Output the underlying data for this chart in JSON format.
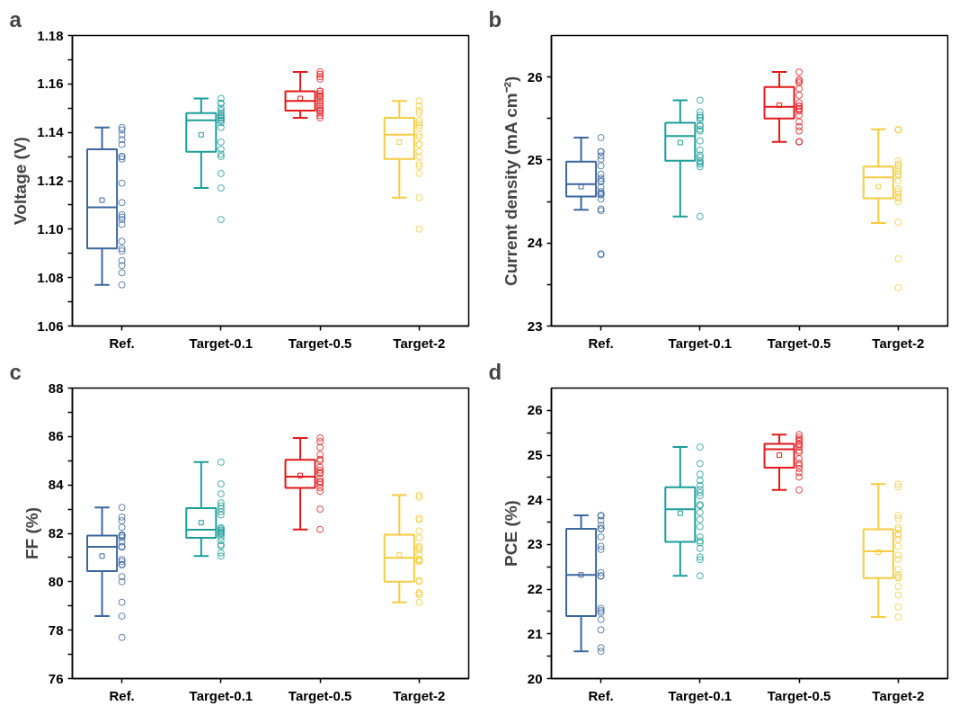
{
  "chart_data": [
    {
      "type": "box",
      "title": "a",
      "ylabel": "Voltage (V)",
      "categories": [
        "Ref.",
        "Target-0.1",
        "Target-0.5",
        "Target-2"
      ],
      "ylim": [
        1.06,
        1.18
      ],
      "yticks": [
        1.06,
        {
          "value": 1.07,
          "label": null
        },
        1.08,
        {
          "value": 1.09,
          "label": null
        },
        {
          "value": 1.1,
          "label": "1.10"
        },
        {
          "value": 1.11,
          "label": null
        },
        1.12,
        {
          "value": 1.13,
          "label": null
        },
        1.14,
        {
          "value": 1.15,
          "label": null
        },
        1.16,
        {
          "value": 1.17,
          "label": null
        },
        1.18
      ],
      "grid": false,
      "series": [
        {
          "type": "box",
          "colors": [
            "#3b679e",
            "#1b9e9a",
            "#e3191b",
            "#f5cc3f"
          ],
          "boxes": [
            {
              "low": 1.077,
              "q1": 1.092,
              "median": 1.109,
              "q3": 1.133,
              "high": 1.142,
              "mean": 1.112
            },
            {
              "low": 1.117,
              "q1": 1.132,
              "median": 1.145,
              "q3": 1.148,
              "high": 1.154,
              "mean": 1.139
            },
            {
              "low": 1.146,
              "q1": 1.149,
              "median": 1.153,
              "q3": 1.157,
              "high": 1.165,
              "mean": 1.154
            },
            {
              "low": 1.113,
              "q1": 1.129,
              "median": 1.139,
              "q3": 1.146,
              "high": 1.153,
              "mean": 1.136
            }
          ]
        },
        {
          "type": "scatter",
          "marker": "circle",
          "color": "#3b679e",
          "x": [
            "Ref.",
            "Ref.",
            "Ref.",
            "Ref.",
            "Ref.",
            "Ref.",
            "Ref.",
            "Ref.",
            "Ref.",
            "Ref.",
            "Ref.",
            "Ref.",
            "Ref.",
            "Ref.",
            "Ref.",
            "Ref.",
            "Ref.",
            "Ref.",
            "Ref.",
            "Ref.",
            "Ref."
          ],
          "values": [
            1.142,
            1.139,
            1.141,
            1.137,
            1.135,
            1.13,
            1.129,
            1.13,
            1.119,
            1.111,
            1.105,
            1.104,
            1.102,
            1.106,
            1.095,
            1.091,
            1.092,
            1.087,
            1.082,
            1.085,
            1.077
          ]
        },
        {
          "type": "scatter",
          "marker": "circle",
          "color": "#1b9e9a",
          "x": [
            "Target-0.1",
            "Target-0.1",
            "Target-0.1",
            "Target-0.1",
            "Target-0.1",
            "Target-0.1",
            "Target-0.1",
            "Target-0.1",
            "Target-0.1",
            "Target-0.1",
            "Target-0.1",
            "Target-0.1",
            "Target-0.1",
            "Target-0.1",
            "Target-0.1",
            "Target-0.1",
            "Target-0.1",
            "Target-0.1",
            "Target-0.1",
            "Target-0.1",
            "Target-0.1"
          ],
          "values": [
            1.154,
            1.152,
            1.152,
            1.15,
            1.149,
            1.148,
            1.147,
            1.147,
            1.146,
            1.146,
            1.145,
            1.145,
            1.144,
            1.142,
            1.136,
            1.133,
            1.13,
            1.131,
            1.123,
            1.117,
            1.104
          ]
        },
        {
          "type": "scatter",
          "marker": "circle",
          "color": "#e3191b",
          "x": [
            "Target-0.5",
            "Target-0.5",
            "Target-0.5",
            "Target-0.5",
            "Target-0.5",
            "Target-0.5",
            "Target-0.5",
            "Target-0.5",
            "Target-0.5",
            "Target-0.5",
            "Target-0.5",
            "Target-0.5",
            "Target-0.5",
            "Target-0.5",
            "Target-0.5",
            "Target-0.5",
            "Target-0.5",
            "Target-0.5",
            "Target-0.5"
          ],
          "values": [
            1.165,
            1.164,
            1.163,
            1.162,
            1.157,
            1.157,
            1.156,
            1.155,
            1.155,
            1.154,
            1.153,
            1.152,
            1.151,
            1.15,
            1.149,
            1.149,
            1.148,
            1.147,
            1.146
          ]
        },
        {
          "type": "scatter",
          "marker": "circle",
          "color": "#f5cc3f",
          "x": [
            "Target-2",
            "Target-2",
            "Target-2",
            "Target-2",
            "Target-2",
            "Target-2",
            "Target-2",
            "Target-2",
            "Target-2",
            "Target-2",
            "Target-2",
            "Target-2",
            "Target-2",
            "Target-2",
            "Target-2",
            "Target-2",
            "Target-2",
            "Target-2",
            "Target-2"
          ],
          "values": [
            1.153,
            1.151,
            1.149,
            1.148,
            1.145,
            1.144,
            1.143,
            1.142,
            1.139,
            1.138,
            1.135,
            1.135,
            1.132,
            1.13,
            1.127,
            1.126,
            1.123,
            1.113,
            1.1
          ]
        }
      ]
    },
    {
      "type": "box",
      "title": "b",
      "ylabel": "Current density (mA cm⁻²)",
      "categories": [
        "Ref.",
        "Target-0.1",
        "Target-0.5",
        "Target-2"
      ],
      "ylim": [
        23,
        26.5
      ],
      "yticks": [
        23,
        {
          "value": 23.5,
          "label": null
        },
        24,
        {
          "value": 24.5,
          "label": null
        },
        25,
        {
          "value": 25.5,
          "label": null
        },
        26
      ],
      "grid": false,
      "series": [
        {
          "type": "box",
          "colors": [
            "#3b679e",
            "#1b9e9a",
            "#e3191b",
            "#f5cc3f"
          ],
          "boxes": [
            {
              "low": 24.4,
              "q1": 24.56,
              "median": 24.71,
              "q3": 24.98,
              "high": 25.27,
              "mean": 24.68
            },
            {
              "low": 24.32,
              "q1": 24.99,
              "median": 25.29,
              "q3": 25.45,
              "high": 25.72,
              "mean": 25.21
            },
            {
              "low": 25.22,
              "q1": 25.5,
              "median": 25.64,
              "q3": 25.88,
              "high": 26.06,
              "mean": 25.66
            },
            {
              "low": 24.24,
              "q1": 24.54,
              "median": 24.79,
              "q3": 24.92,
              "high": 25.37,
              "mean": 24.68
            }
          ]
        },
        {
          "type": "scatter",
          "marker": "circle",
          "color": "#3b679e",
          "x": [
            "Ref.",
            "Ref.",
            "Ref.",
            "Ref.",
            "Ref.",
            "Ref.",
            "Ref.",
            "Ref.",
            "Ref.",
            "Ref.",
            "Ref.",
            "Ref.",
            "Ref.",
            "Ref.",
            "Ref.",
            "Ref.",
            "Ref.",
            "Ref.",
            "Ref.",
            "Ref."
          ],
          "values": [
            25.27,
            25.1,
            25.1,
            25.05,
            25.01,
            24.93,
            24.83,
            24.78,
            24.75,
            24.74,
            24.67,
            24.62,
            24.59,
            24.58,
            24.6,
            24.53,
            24.41,
            24.39,
            23.87,
            23.86
          ]
        },
        {
          "type": "scatter",
          "marker": "circle",
          "color": "#1b9e9a",
          "x": [
            "Target-0.1",
            "Target-0.1",
            "Target-0.1",
            "Target-0.1",
            "Target-0.1",
            "Target-0.1",
            "Target-0.1",
            "Target-0.1",
            "Target-0.1",
            "Target-0.1",
            "Target-0.1",
            "Target-0.1",
            "Target-0.1",
            "Target-0.1",
            "Target-0.1",
            "Target-0.1",
            "Target-0.1",
            "Target-0.1",
            "Target-0.1"
          ],
          "values": [
            25.72,
            25.58,
            25.51,
            25.51,
            25.48,
            25.41,
            25.37,
            25.35,
            25.23,
            25.12,
            25.06,
            25.03,
            24.99,
            24.97,
            24.95,
            24.92,
            24.32,
            25.54,
            25.42
          ]
        },
        {
          "type": "scatter",
          "marker": "circle",
          "color": "#e3191b",
          "x": [
            "Target-0.5",
            "Target-0.5",
            "Target-0.5",
            "Target-0.5",
            "Target-0.5",
            "Target-0.5",
            "Target-0.5",
            "Target-0.5",
            "Target-0.5",
            "Target-0.5",
            "Target-0.5",
            "Target-0.5",
            "Target-0.5",
            "Target-0.5",
            "Target-0.5",
            "Target-0.5",
            "Target-0.5",
            "Target-0.5"
          ],
          "values": [
            26.06,
            25.97,
            25.95,
            25.93,
            25.86,
            25.78,
            25.69,
            25.65,
            25.65,
            25.62,
            25.61,
            25.59,
            25.54,
            25.46,
            25.4,
            25.35,
            25.22,
            25.22
          ]
        },
        {
          "type": "scatter",
          "marker": "circle",
          "color": "#f5cc3f",
          "x": [
            "Target-2",
            "Target-2",
            "Target-2",
            "Target-2",
            "Target-2",
            "Target-2",
            "Target-2",
            "Target-2",
            "Target-2",
            "Target-2",
            "Target-2",
            "Target-2",
            "Target-2",
            "Target-2",
            "Target-2",
            "Target-2",
            "Target-2",
            "Target-2",
            "Target-2"
          ],
          "values": [
            25.37,
            25.36,
            24.99,
            24.95,
            24.93,
            24.9,
            24.86,
            24.81,
            24.83,
            24.75,
            24.65,
            24.62,
            24.59,
            24.55,
            24.54,
            24.5,
            24.25,
            23.81,
            23.46
          ]
        }
      ]
    },
    {
      "type": "box",
      "title": "c",
      "ylabel": "FF (%)",
      "categories": [
        "Ref.",
        "Target-0.1",
        "Target-0.5",
        "Target-2"
      ],
      "ylim": [
        76,
        88
      ],
      "yticks": [
        76,
        {
          "value": 77,
          "label": null
        },
        78,
        {
          "value": 79,
          "label": null
        },
        80,
        {
          "value": 81,
          "label": null
        },
        82,
        {
          "value": 83,
          "label": null
        },
        84,
        {
          "value": 85,
          "label": null
        },
        86,
        {
          "value": 87,
          "label": null
        },
        88
      ],
      "grid": false,
      "series": [
        {
          "type": "box",
          "colors": [
            "#3b679e",
            "#1b9e9a",
            "#e3191b",
            "#f5cc3f"
          ],
          "boxes": [
            {
              "low": 78.58,
              "q1": 80.44,
              "median": 81.44,
              "q3": 81.91,
              "high": 83.07,
              "mean": 81.06
            },
            {
              "low": 81.06,
              "q1": 81.81,
              "median": 82.15,
              "q3": 83.04,
              "high": 84.94,
              "mean": 82.44
            },
            {
              "low": 82.16,
              "q1": 83.88,
              "median": 84.34,
              "q3": 85.04,
              "high": 85.94,
              "mean": 84.39
            },
            {
              "low": 79.15,
              "q1": 80.0,
              "median": 80.99,
              "q3": 81.94,
              "high": 83.58,
              "mean": 81.11
            }
          ]
        },
        {
          "type": "scatter",
          "marker": "circle",
          "color": "#3b679e",
          "x": [
            "Ref.",
            "Ref.",
            "Ref.",
            "Ref.",
            "Ref.",
            "Ref.",
            "Ref.",
            "Ref.",
            "Ref.",
            "Ref.",
            "Ref.",
            "Ref.",
            "Ref.",
            "Ref.",
            "Ref.",
            "Ref.",
            "Ref.",
            "Ref.",
            "Ref.",
            "Ref."
          ],
          "values": [
            83.07,
            82.67,
            82.52,
            82.25,
            81.9,
            81.94,
            81.82,
            81.64,
            81.46,
            81.43,
            80.92,
            80.84,
            80.72,
            80.7,
            80.21,
            80.0,
            79.15,
            78.58,
            77.7,
            81.9
          ]
        },
        {
          "type": "scatter",
          "marker": "circle",
          "color": "#1b9e9a",
          "x": [
            "Target-0.1",
            "Target-0.1",
            "Target-0.1",
            "Target-0.1",
            "Target-0.1",
            "Target-0.1",
            "Target-0.1",
            "Target-0.1",
            "Target-0.1",
            "Target-0.1",
            "Target-0.1",
            "Target-0.1",
            "Target-0.1",
            "Target-0.1",
            "Target-0.1",
            "Target-0.1",
            "Target-0.1",
            "Target-0.1",
            "Target-0.1",
            "Target-0.1",
            "Target-0.1"
          ],
          "values": [
            84.94,
            84.04,
            83.63,
            83.26,
            83.14,
            83.03,
            82.89,
            82.76,
            82.23,
            82.21,
            82.14,
            82.1,
            82.04,
            82.0,
            81.96,
            81.85,
            81.7,
            81.53,
            81.47,
            81.19,
            81.06
          ]
        },
        {
          "type": "scatter",
          "marker": "circle",
          "color": "#e3191b",
          "x": [
            "Target-0.5",
            "Target-0.5",
            "Target-0.5",
            "Target-0.5",
            "Target-0.5",
            "Target-0.5",
            "Target-0.5",
            "Target-0.5",
            "Target-0.5",
            "Target-0.5",
            "Target-0.5",
            "Target-0.5",
            "Target-0.5",
            "Target-0.5",
            "Target-0.5",
            "Target-0.5",
            "Target-0.5",
            "Target-0.5"
          ],
          "values": [
            85.94,
            85.79,
            85.55,
            85.25,
            85.06,
            85.0,
            84.73,
            84.61,
            84.52,
            84.47,
            84.26,
            84.14,
            84.11,
            84.02,
            83.88,
            83.73,
            83.0,
            82.16
          ]
        },
        {
          "type": "scatter",
          "marker": "circle",
          "color": "#f5cc3f",
          "x": [
            "Target-2",
            "Target-2",
            "Target-2",
            "Target-2",
            "Target-2",
            "Target-2",
            "Target-2",
            "Target-2",
            "Target-2",
            "Target-2",
            "Target-2",
            "Target-2",
            "Target-2",
            "Target-2",
            "Target-2",
            "Target-2",
            "Target-2",
            "Target-2",
            "Target-2",
            "Target-2"
          ],
          "values": [
            83.58,
            83.49,
            82.62,
            82.56,
            82.1,
            81.81,
            81.46,
            81.4,
            81.33,
            81.12,
            80.93,
            80.9,
            80.86,
            80.84,
            80.01,
            80.05,
            79.55,
            79.53,
            79.46,
            79.15
          ]
        }
      ]
    },
    {
      "type": "box",
      "title": "d",
      "ylabel": "PCE (%)",
      "categories": [
        "Ref.",
        "Target-0.1",
        "Target-0.5",
        "Target-2"
      ],
      "ylim": [
        20,
        26.5
      ],
      "yticks": [
        20,
        {
          "value": 20.5,
          "label": null
        },
        21,
        {
          "value": 21.5,
          "label": null
        },
        22,
        {
          "value": 22.5,
          "label": null
        },
        23,
        {
          "value": 23.5,
          "label": null
        },
        24,
        {
          "value": 24.5,
          "label": null
        },
        25,
        {
          "value": 25.5,
          "label": null
        },
        26
      ],
      "grid": false,
      "series": [
        {
          "type": "box",
          "colors": [
            "#3b679e",
            "#1b9e9a",
            "#e3191b",
            "#f5cc3f"
          ],
          "boxes": [
            {
              "low": 20.61,
              "q1": 21.4,
              "median": 22.32,
              "q3": 23.35,
              "high": 23.65,
              "mean": 22.32
            },
            {
              "low": 22.3,
              "q1": 23.06,
              "median": 23.79,
              "q3": 24.28,
              "high": 25.18,
              "mean": 23.7
            },
            {
              "low": 24.22,
              "q1": 24.72,
              "median": 25.13,
              "q3": 25.25,
              "high": 25.46,
              "mean": 25.0
            },
            {
              "low": 21.38,
              "q1": 22.25,
              "median": 22.85,
              "q3": 23.34,
              "high": 24.35,
              "mean": 22.83
            }
          ]
        },
        {
          "type": "scatter",
          "marker": "circle",
          "color": "#3b679e",
          "x": [
            "Ref.",
            "Ref.",
            "Ref.",
            "Ref.",
            "Ref.",
            "Ref.",
            "Ref.",
            "Ref.",
            "Ref.",
            "Ref.",
            "Ref.",
            "Ref.",
            "Ref.",
            "Ref.",
            "Ref.",
            "Ref.",
            "Ref.",
            "Ref.",
            "Ref."
          ],
          "values": [
            23.65,
            23.64,
            23.54,
            23.43,
            23.36,
            23.35,
            23.17,
            22.96,
            22.89,
            22.37,
            22.3,
            22.29,
            21.57,
            21.52,
            21.48,
            21.32,
            21.09,
            20.69,
            20.61
          ]
        },
        {
          "type": "scatter",
          "marker": "circle",
          "color": "#1b9e9a",
          "x": [
            "Target-0.1",
            "Target-0.1",
            "Target-0.1",
            "Target-0.1",
            "Target-0.1",
            "Target-0.1",
            "Target-0.1",
            "Target-0.1",
            "Target-0.1",
            "Target-0.1",
            "Target-0.1",
            "Target-0.1",
            "Target-0.1",
            "Target-0.1",
            "Target-0.1",
            "Target-0.1",
            "Target-0.1",
            "Target-0.1",
            "Target-0.1",
            "Target-0.1"
          ],
          "values": [
            25.18,
            24.81,
            24.57,
            24.43,
            24.32,
            24.23,
            24.16,
            24.09,
            23.89,
            23.87,
            23.72,
            23.56,
            23.4,
            23.17,
            23.08,
            23.04,
            22.91,
            22.72,
            22.66,
            22.3
          ]
        },
        {
          "type": "scatter",
          "marker": "circle",
          "color": "#e3191b",
          "x": [
            "Target-0.5",
            "Target-0.5",
            "Target-0.5",
            "Target-0.5",
            "Target-0.5",
            "Target-0.5",
            "Target-0.5",
            "Target-0.5",
            "Target-0.5",
            "Target-0.5",
            "Target-0.5",
            "Target-0.5",
            "Target-0.5",
            "Target-0.5",
            "Target-0.5",
            "Target-0.5"
          ],
          "values": [
            25.46,
            25.4,
            25.35,
            25.31,
            25.25,
            25.23,
            25.18,
            25.1,
            25.06,
            24.92,
            24.82,
            24.77,
            24.7,
            24.61,
            24.51,
            24.22
          ]
        },
        {
          "type": "scatter",
          "marker": "circle",
          "color": "#f5cc3f",
          "x": [
            "Target-2",
            "Target-2",
            "Target-2",
            "Target-2",
            "Target-2",
            "Target-2",
            "Target-2",
            "Target-2",
            "Target-2",
            "Target-2",
            "Target-2",
            "Target-2",
            "Target-2",
            "Target-2",
            "Target-2",
            "Target-2",
            "Target-2",
            "Target-2",
            "Target-2",
            "Target-2"
          ],
          "values": [
            24.35,
            24.29,
            23.65,
            23.58,
            23.38,
            23.33,
            23.24,
            23.21,
            23.12,
            22.96,
            22.76,
            22.67,
            22.44,
            22.32,
            22.27,
            22.25,
            22.06,
            21.87,
            21.6,
            21.38
          ]
        }
      ]
    }
  ]
}
